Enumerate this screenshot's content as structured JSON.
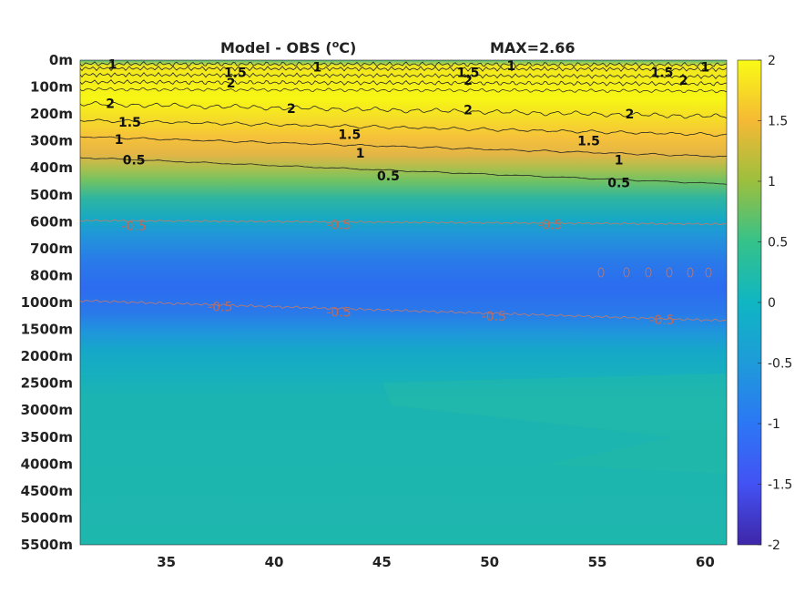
{
  "chart_data": {
    "type": "heatmap",
    "title": "Model - OBS (",
    "title_unit_sup": "o",
    "title_unit_suffix": "C)",
    "max_label": "MAX=2.66",
    "x_ticks": [
      35,
      40,
      45,
      50,
      55,
      60
    ],
    "x_range": [
      31,
      61
    ],
    "y_levels": [
      "0m",
      "100m",
      "200m",
      "300m",
      "400m",
      "500m",
      "600m",
      "700m",
      "800m",
      "1000m",
      "1500m",
      "2000m",
      "2500m",
      "3000m",
      "3500m",
      "4000m",
      "4500m",
      "5000m",
      "5500m"
    ],
    "colorbar": {
      "min": -2,
      "max": 2,
      "ticks": [
        "2",
        "1.5",
        "1",
        "0.5",
        "0",
        "-0.5",
        "-1",
        "-1.5",
        "-2"
      ],
      "colormap": "parula"
    },
    "contour_labels": [
      {
        "text": "1",
        "x": 32.5,
        "y": 0.15,
        "color": "black"
      },
      {
        "text": "1.5",
        "x": 38.2,
        "y": 0.45,
        "color": "black"
      },
      {
        "text": "2",
        "x": 38.0,
        "y": 0.85,
        "color": "black"
      },
      {
        "text": "1",
        "x": 42.0,
        "y": 0.25,
        "color": "black"
      },
      {
        "text": "1.5",
        "x": 49.0,
        "y": 0.45,
        "color": "black"
      },
      {
        "text": "2",
        "x": 49.0,
        "y": 0.75,
        "color": "black"
      },
      {
        "text": "1",
        "x": 51.0,
        "y": 0.2,
        "color": "black"
      },
      {
        "text": "1.5",
        "x": 58.0,
        "y": 0.45,
        "color": "black"
      },
      {
        "text": "2",
        "x": 59.0,
        "y": 0.75,
        "color": "black"
      },
      {
        "text": "1",
        "x": 60.0,
        "y": 0.25,
        "color": "black"
      },
      {
        "text": "2",
        "x": 32.4,
        "y": 1.6,
        "color": "black"
      },
      {
        "text": "1.5",
        "x": 33.3,
        "y": 2.3,
        "color": "black"
      },
      {
        "text": "2",
        "x": 40.8,
        "y": 1.8,
        "color": "black"
      },
      {
        "text": "2",
        "x": 49.0,
        "y": 1.85,
        "color": "black"
      },
      {
        "text": "2",
        "x": 56.5,
        "y": 2.0,
        "color": "black"
      },
      {
        "text": "1",
        "x": 32.8,
        "y": 2.95,
        "color": "black"
      },
      {
        "text": "1.5",
        "x": 43.5,
        "y": 2.75,
        "color": "black"
      },
      {
        "text": "1.5",
        "x": 54.6,
        "y": 3.0,
        "color": "black"
      },
      {
        "text": "0.5",
        "x": 33.5,
        "y": 3.7,
        "color": "black"
      },
      {
        "text": "1",
        "x": 44.0,
        "y": 3.45,
        "color": "black"
      },
      {
        "text": "1",
        "x": 56.0,
        "y": 3.7,
        "color": "black"
      },
      {
        "text": "0.5",
        "x": 45.3,
        "y": 4.3,
        "color": "black"
      },
      {
        "text": "0.5",
        "x": 56.0,
        "y": 4.55,
        "color": "black"
      },
      {
        "text": "-0.5",
        "x": 33.5,
        "y": 6.15,
        "color": "brown"
      },
      {
        "text": "-0.5",
        "x": 43.0,
        "y": 6.1,
        "color": "brown"
      },
      {
        "text": "-0.5",
        "x": 52.8,
        "y": 6.1,
        "color": "brown"
      },
      {
        "text": "-0.5",
        "x": 37.5,
        "y": 9.15,
        "color": "brown"
      },
      {
        "text": "-0.5",
        "x": 43.0,
        "y": 9.35,
        "color": "brown"
      },
      {
        "text": "-0.5",
        "x": 50.2,
        "y": 9.5,
        "color": "brown"
      },
      {
        "text": "-0.5",
        "x": 58.0,
        "y": 9.65,
        "color": "brown"
      }
    ]
  }
}
